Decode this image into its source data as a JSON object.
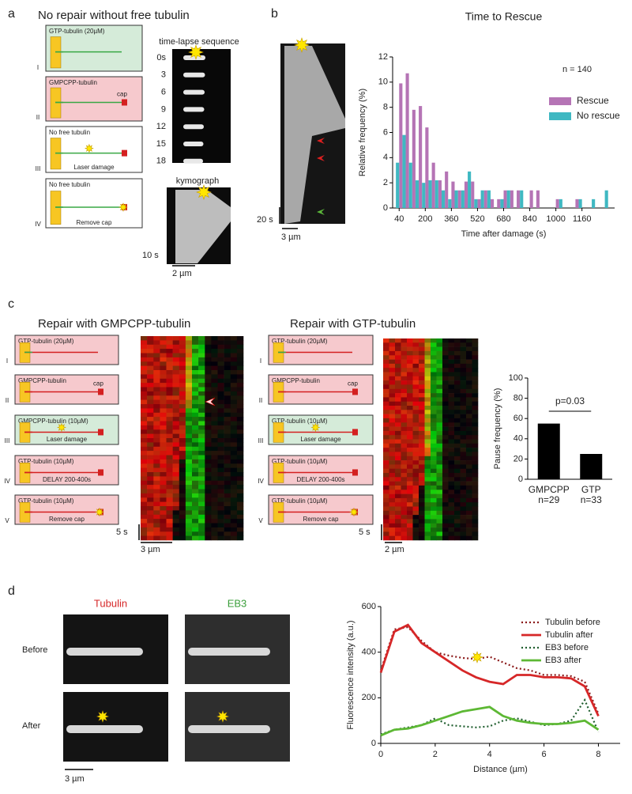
{
  "panel_a": {
    "label": "a",
    "title": "No repair without free tubulin",
    "steps": [
      {
        "numeral": "I",
        "title": "GTP-tubulin (20µM)",
        "bg": "#d5ebd9"
      },
      {
        "numeral": "II",
        "title": "GMPCPP-tubulin",
        "note": "cap",
        "bg": "#f6c9cd"
      },
      {
        "numeral": "III",
        "title": "No free tubulin",
        "note": "Laser damage",
        "bg": "#ffffff"
      },
      {
        "numeral": "IV",
        "title": "No free tubulin",
        "note": "Remove cap",
        "bg": "#ffffff"
      }
    ],
    "timelapse_title": "time-lapse sequence",
    "times": [
      "0s",
      "3",
      "6",
      "9",
      "12",
      "15",
      "18"
    ],
    "kymograph_title": "kymograph",
    "scale_time": "10 s",
    "scale_length": "2 µm"
  },
  "panel_b": {
    "label": "b",
    "scale_time": "20 s",
    "scale_length": "3 µm"
  },
  "panel_c": {
    "label": "c",
    "left": {
      "title": "Repair with GMPCPP-tubulin",
      "scale_time": "5 s",
      "scale_length": "3 µm",
      "steps": [
        {
          "numeral": "I",
          "title": "GTP-tubulin (20µM)",
          "bg": "#f6c9cd"
        },
        {
          "numeral": "II",
          "title": "GMPCPP-tubulin",
          "note": "cap",
          "bg": "#f6c9cd"
        },
        {
          "numeral": "III",
          "title": "GMPCPP-tubulin (10µM)",
          "note": "Laser damage",
          "bg": "#d5ebd9"
        },
        {
          "numeral": "IV",
          "title": "GTP-tubulin (10µM)",
          "note": "DELAY 200-400s",
          "bg": "#f6c9cd"
        },
        {
          "numeral": "V",
          "title": "GTP-tubulin (10µM)",
          "note": "Remove cap",
          "bg": "#f6c9cd"
        }
      ]
    },
    "right": {
      "title": "Repair with GTP-tubulin",
      "scale_time": "5 s",
      "scale_length": "2 µm",
      "steps": [
        {
          "numeral": "I",
          "title": "GTP-tubulin (20µM)",
          "bg": "#f6c9cd"
        },
        {
          "numeral": "II",
          "title": "GMPCPP-tubulin",
          "note": "cap",
          "bg": "#f6c9cd"
        },
        {
          "numeral": "III",
          "title": "GTP-tubulin (10µM)",
          "note": "Laser damage",
          "bg": "#d5ebd9"
        },
        {
          "numeral": "IV",
          "title": "GTP-tubulin (10µM)",
          "note": "DELAY 200-400s",
          "bg": "#f6c9cd"
        },
        {
          "numeral": "V",
          "title": "GTP-tubulin (10µM)",
          "note": "Remove cap",
          "bg": "#f6c9cd"
        }
      ]
    }
  },
  "panel_d": {
    "label": "d",
    "tubulin": "Tubulin",
    "eb3": "EB3",
    "before": "Before",
    "after": "After",
    "scale_length": "3 µm"
  },
  "chart_data": [
    {
      "type": "bar",
      "title": "Time to Rescue",
      "annotation": "n = 140",
      "xlabel": "Time after damage (s)",
      "ylabel": "Relative frequency (%)",
      "x": [
        40,
        80,
        120,
        160,
        200,
        240,
        280,
        320,
        360,
        400,
        440,
        480,
        520,
        560,
        600,
        640,
        680,
        720,
        760,
        800,
        840,
        880,
        920,
        960,
        1000,
        1040,
        1080,
        1120,
        1160,
        1200,
        1240,
        1280,
        1320
      ],
      "xlim": [
        0,
        1360
      ],
      "xticks": [
        40,
        200,
        360,
        520,
        680,
        840,
        1000,
        1160
      ],
      "ylim": [
        0,
        12
      ],
      "yticks": [
        0,
        2,
        4,
        6,
        8,
        10,
        12
      ],
      "legend": "upper right",
      "series": [
        {
          "name": "Rescue",
          "color": "#b574b5",
          "values": [
            9.9,
            10.7,
            7.8,
            8.1,
            6.4,
            3.6,
            2.2,
            2.9,
            2.1,
            1.4,
            2.1,
            2.1,
            0.7,
            1.4,
            0.7,
            0.7,
            1.4,
            1.4,
            1.4,
            0,
            1.4,
            1.4,
            0,
            0,
            0.7,
            0,
            0,
            0.7,
            0,
            0,
            0,
            0,
            0
          ]
        },
        {
          "name": "No rescue",
          "color": "#3fb8c2",
          "values": [
            3.6,
            5.8,
            3.6,
            2.2,
            2.0,
            2.2,
            2.2,
            1.4,
            0.7,
            1.4,
            1.4,
            2.9,
            0.7,
            1.4,
            1.4,
            0,
            0.7,
            1.4,
            0,
            1.4,
            0,
            0,
            0,
            0,
            0,
            0.7,
            0,
            0,
            0.7,
            0,
            0.7,
            0,
            1.4
          ]
        }
      ]
    },
    {
      "type": "bar",
      "ylabel": "Pause frequency (%)",
      "categories": [
        "GMPCPP",
        "GTP"
      ],
      "category_notes": [
        "n=29",
        "n=33"
      ],
      "values": [
        55,
        25
      ],
      "color": "#000000",
      "ylim": [
        0,
        100
      ],
      "yticks": [
        0,
        20,
        40,
        60,
        80,
        100
      ],
      "annotation": "p=0.03"
    },
    {
      "type": "line",
      "xlabel": "Distance (µm)",
      "ylabel": "Fluorescence intensity (a.u.)",
      "x": [
        0,
        0.5,
        1,
        1.5,
        2,
        2.5,
        3,
        3.5,
        4,
        4.5,
        5,
        5.5,
        6,
        6.5,
        7,
        7.5,
        8
      ],
      "xlim": [
        0,
        8.8
      ],
      "xticks": [
        0,
        2,
        4,
        6,
        8
      ],
      "ylim": [
        0,
        600
      ],
      "yticks": [
        0,
        200,
        400,
        600
      ],
      "legend": "upper right",
      "series": [
        {
          "name": "Tubulin before",
          "color": "#8b1a1a",
          "style": "dotted",
          "values": [
            320,
            500,
            510,
            450,
            400,
            385,
            375,
            370,
            380,
            355,
            330,
            320,
            300,
            300,
            295,
            270,
            130
          ]
        },
        {
          "name": "Tubulin after",
          "color": "#d62728",
          "style": "solid",
          "values": [
            310,
            490,
            520,
            440,
            400,
            360,
            320,
            290,
            270,
            260,
            300,
            300,
            290,
            290,
            285,
            250,
            120
          ]
        },
        {
          "name": "EB3 before",
          "color": "#1f5e2e",
          "style": "dotted",
          "values": [
            40,
            60,
            70,
            80,
            110,
            80,
            75,
            70,
            75,
            100,
            110,
            95,
            80,
            85,
            100,
            190,
            50
          ]
        },
        {
          "name": "EB3 after",
          "color": "#5db834",
          "style": "solid",
          "values": [
            35,
            60,
            65,
            80,
            100,
            120,
            140,
            150,
            160,
            120,
            100,
            90,
            85,
            85,
            90,
            100,
            60
          ]
        }
      ]
    }
  ]
}
